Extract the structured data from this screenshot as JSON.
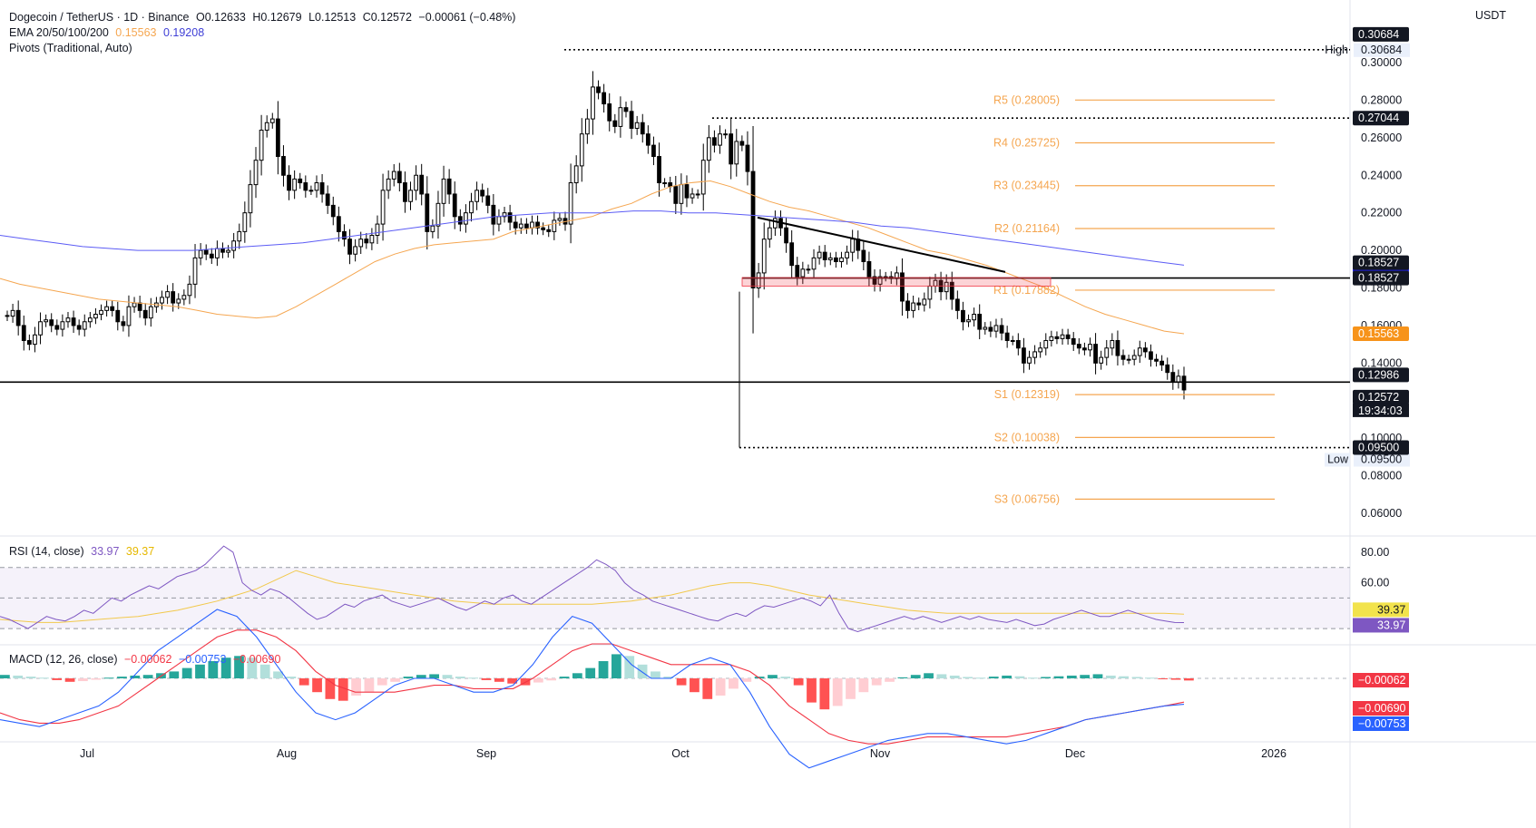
{
  "header": {
    "symbol": "Dogecoin / TetherUS · 1D · Binance",
    "open": "O0.12633",
    "high": "H0.12679",
    "low": "L0.12513",
    "close": "C0.12572",
    "change": "−0.00061 (−0.48%)",
    "ema_label": "EMA 20/50/100/200",
    "ema_50_value": "0.15563",
    "ema_200_value": "0.19208",
    "pivots_label": "Pivots (Traditional, Auto)",
    "currency": "USDT"
  },
  "colors": {
    "up": "#ffffff",
    "down": "#000000",
    "ema50": "#f5a650",
    "ema200": "#5c5cf5",
    "pivot": "#f5a650",
    "rsi": "#7e57c2",
    "rsi_ma": "#f2c94c",
    "macd": "#2962ff",
    "signal": "#f23645",
    "hist_up_strong": "#26a69a",
    "hist_up_weak": "#b2dfdb",
    "hist_down_strong": "#ff5252",
    "hist_down_weak": "#ffcdd2"
  },
  "chart_data": [
    {
      "type": "candlestick",
      "title": "Dogecoin / TetherUS · 1D · Binance",
      "ylabel": "USDT",
      "ylim": [
        0.05,
        0.31
      ],
      "y_ticks": [
        "0.30000",
        "0.28000",
        "0.26000",
        "0.24000",
        "0.22000",
        "0.20000",
        "0.18000",
        "0.16000",
        "0.14000",
        "0.12000",
        "0.10000",
        "0.08000",
        "0.06000"
      ],
      "x_ticks": [
        "Jul",
        "Aug",
        "Sep",
        "Oct",
        "Nov",
        "Dec",
        "2026"
      ],
      "closes": [
        0.165,
        0.168,
        0.16,
        0.152,
        0.15,
        0.155,
        0.162,
        0.163,
        0.16,
        0.158,
        0.162,
        0.164,
        0.16,
        0.158,
        0.162,
        0.164,
        0.166,
        0.168,
        0.17,
        0.168,
        0.162,
        0.16,
        0.17,
        0.172,
        0.168,
        0.164,
        0.17,
        0.172,
        0.175,
        0.178,
        0.172,
        0.174,
        0.176,
        0.182,
        0.196,
        0.2,
        0.198,
        0.196,
        0.201,
        0.199,
        0.2,
        0.205,
        0.21,
        0.22,
        0.235,
        0.248,
        0.264,
        0.268,
        0.27,
        0.25,
        0.24,
        0.232,
        0.238,
        0.236,
        0.232,
        0.232,
        0.236,
        0.23,
        0.224,
        0.218,
        0.21,
        0.206,
        0.198,
        0.202,
        0.206,
        0.204,
        0.208,
        0.214,
        0.232,
        0.238,
        0.242,
        0.236,
        0.226,
        0.232,
        0.24,
        0.23,
        0.21,
        0.213,
        0.225,
        0.238,
        0.23,
        0.218,
        0.214,
        0.22,
        0.226,
        0.232,
        0.229,
        0.224,
        0.214,
        0.218,
        0.22,
        0.215,
        0.212,
        0.214,
        0.212,
        0.215,
        0.212,
        0.211,
        0.21,
        0.216,
        0.217,
        0.214,
        0.236,
        0.245,
        0.262,
        0.27,
        0.287,
        0.284,
        0.278,
        0.269,
        0.266,
        0.276,
        0.274,
        0.265,
        0.268,
        0.262,
        0.256,
        0.25,
        0.236,
        0.236,
        0.234,
        0.225,
        0.235,
        0.228,
        0.23,
        0.23,
        0.248,
        0.26,
        0.256,
        0.262,
        0.262,
        0.246,
        0.258,
        0.256,
        0.242,
        0.18,
        0.188,
        0.206,
        0.212,
        0.217,
        0.212,
        0.204,
        0.192,
        0.186,
        0.19,
        0.19,
        0.196,
        0.199,
        0.195,
        0.196,
        0.194,
        0.196,
        0.199,
        0.206,
        0.2,
        0.194,
        0.186,
        0.182,
        0.186,
        0.186,
        0.185,
        0.188,
        0.173,
        0.168,
        0.172,
        0.171,
        0.174,
        0.181,
        0.184,
        0.178,
        0.183,
        0.174,
        0.168,
        0.162,
        0.163,
        0.166,
        0.158,
        0.159,
        0.157,
        0.16,
        0.156,
        0.152,
        0.152,
        0.148,
        0.14,
        0.143,
        0.146,
        0.148,
        0.152,
        0.154,
        0.153,
        0.155,
        0.153,
        0.15,
        0.148,
        0.147,
        0.15,
        0.14,
        0.143,
        0.148,
        0.152,
        0.144,
        0.142,
        0.142,
        0.144,
        0.148,
        0.146,
        0.142,
        0.141,
        0.139,
        0.135,
        0.13,
        0.133,
        0.1257
      ],
      "ema_50": [
        0.185,
        0.182,
        0.18,
        0.178,
        0.176,
        0.174,
        0.173,
        0.172,
        0.171,
        0.17,
        0.168,
        0.166,
        0.165,
        0.164,
        0.165,
        0.17,
        0.176,
        0.182,
        0.188,
        0.194,
        0.198,
        0.201,
        0.203,
        0.204,
        0.205,
        0.206,
        0.21,
        0.212,
        0.214,
        0.216,
        0.218,
        0.222,
        0.225,
        0.23,
        0.234,
        0.236,
        0.237,
        0.234,
        0.23,
        0.226,
        0.223,
        0.221,
        0.218,
        0.215,
        0.212,
        0.208,
        0.204,
        0.2,
        0.198,
        0.195,
        0.192,
        0.188,
        0.184,
        0.18,
        0.175,
        0.17,
        0.166,
        0.163,
        0.16,
        0.157,
        0.1556
      ],
      "ema_200": [
        0.208,
        0.206,
        0.204,
        0.202,
        0.201,
        0.2,
        0.2,
        0.2,
        0.201,
        0.202,
        0.203,
        0.204,
        0.206,
        0.208,
        0.21,
        0.212,
        0.214,
        0.216,
        0.218,
        0.219,
        0.22,
        0.22,
        0.22,
        0.221,
        0.221,
        0.22,
        0.22,
        0.219,
        0.218,
        0.217,
        0.216,
        0.215,
        0.213,
        0.212,
        0.21,
        0.208,
        0.206,
        0.204,
        0.202,
        0.2,
        0.198,
        0.196,
        0.194,
        0.1921
      ],
      "pivots": [
        {
          "label": "R5 (0.28005)",
          "value": 0.28005
        },
        {
          "label": "R4 (0.25725)",
          "value": 0.25725
        },
        {
          "label": "R3 (0.23445)",
          "value": 0.23445
        },
        {
          "label": "R2 (0.21164)",
          "value": 0.21164
        },
        {
          "label": "R1 (0.17882)",
          "value": 0.17882
        },
        {
          "label": "S1 (0.12319)",
          "value": 0.12319
        },
        {
          "label": "S2 (0.10038)",
          "value": 0.10038
        },
        {
          "label": "S3 (0.06756)",
          "value": 0.06756
        }
      ],
      "high": {
        "label": "High",
        "value": 0.30684,
        "text": "0.30684"
      },
      "low": {
        "label": "Low",
        "value": 0.095,
        "text": "0.09500"
      },
      "price_tags": [
        {
          "value": 0.30684,
          "text": "0.30684",
          "style": "dark"
        },
        {
          "value": 0.27044,
          "text": "0.27044",
          "style": "dark"
        },
        {
          "value": 0.19208,
          "text": "0.19208",
          "style": "blue"
        },
        {
          "value": 0.18527,
          "text": "0.18527",
          "style": "dark"
        },
        {
          "value": 0.18527,
          "text": "0.18527",
          "style": "dark"
        },
        {
          "value": 0.15563,
          "text": "0.15563",
          "style": "orange"
        },
        {
          "value": 0.12986,
          "text": "0.12986",
          "style": "dark"
        },
        {
          "value": 0.12572,
          "text": "0.12572",
          "style": "dark"
        },
        {
          "value": 0.095,
          "text": "0.09500",
          "style": "dark"
        }
      ],
      "countdown": "19:34:03",
      "support_line": 0.12986,
      "resistance_line": 0.18527,
      "resistance_zone": [
        0.181,
        0.1855
      ],
      "trendline": {
        "from": 0.2175,
        "to": 0.1885
      },
      "dotted_levels": [
        0.30684,
        0.27044,
        0.095
      ]
    },
    {
      "type": "line",
      "title": "RSI (14, close)",
      "value_rsi": "33.97",
      "value_ma": "39.37",
      "ylim": [
        20,
        90
      ],
      "y_ticks": [
        "80.00",
        "60.00"
      ],
      "bands": [
        70,
        50,
        30
      ],
      "rsi": [
        38,
        36,
        33,
        30,
        34,
        38,
        36,
        35,
        38,
        42,
        40,
        45,
        50,
        48,
        52,
        55,
        58,
        56,
        60,
        64,
        66,
        68,
        72,
        78,
        84,
        80,
        60,
        55,
        52,
        56,
        54,
        50,
        45,
        40,
        36,
        38,
        42,
        46,
        44,
        48,
        50,
        52,
        48,
        46,
        44,
        46,
        48,
        50,
        47,
        44,
        42,
        45,
        48,
        46,
        50,
        52,
        48,
        46,
        50,
        54,
        58,
        62,
        66,
        70,
        75,
        72,
        68,
        60,
        55,
        52,
        48,
        46,
        44,
        42,
        40,
        38,
        36,
        35,
        38,
        40,
        38,
        42,
        45,
        44,
        46,
        48,
        50,
        48,
        45,
        52,
        40,
        30,
        28,
        30,
        32,
        34,
        36,
        38,
        36,
        38,
        36,
        34,
        36,
        38,
        36,
        38,
        36,
        35,
        34,
        36,
        34,
        32,
        33,
        36,
        38,
        40,
        42,
        40,
        38,
        38,
        40,
        42,
        40,
        38,
        36,
        35,
        34,
        33.97
      ],
      "rsi_ma": [
        36,
        35,
        34,
        34,
        35,
        36,
        37,
        38,
        40,
        42,
        45,
        48,
        52,
        56,
        62,
        68,
        64,
        60,
        58,
        56,
        54,
        52,
        50,
        48,
        47,
        46,
        46,
        46,
        46,
        46,
        46,
        47,
        48,
        50,
        52,
        55,
        58,
        60,
        60,
        58,
        55,
        52,
        50,
        48,
        46,
        44,
        42,
        41,
        40,
        40,
        40,
        40,
        40,
        40,
        40,
        40,
        40,
        40,
        40,
        40,
        39.37
      ]
    },
    {
      "type": "bar",
      "title": "MACD (12, 26, close)",
      "value_hist": "−0.00062",
      "value_macd": "−0.00753",
      "value_signal": "−0.00690",
      "tags": [
        {
          "value": -0.00062,
          "text": "−0.00062",
          "style": "red"
        },
        {
          "value": -0.0069,
          "text": "−0.00690",
          "style": "red"
        },
        {
          "value": -0.00753,
          "text": "−0.00753",
          "style": "blue"
        }
      ],
      "histogram": [
        0.001,
        0.0008,
        0.0005,
        0.0002,
        -0.0005,
        -0.001,
        -0.0008,
        -0.0004,
        0.0002,
        0.0005,
        0.0008,
        0.001,
        0.0015,
        0.002,
        0.003,
        0.004,
        0.005,
        0.006,
        0.0065,
        0.006,
        0.004,
        0.002,
        0.0005,
        -0.002,
        -0.004,
        -0.006,
        -0.0065,
        -0.005,
        -0.004,
        -0.002,
        -0.001,
        0.0005,
        0.001,
        0.0012,
        0.001,
        0.0005,
        0.0002,
        -0.0005,
        -0.001,
        -0.0015,
        -0.002,
        -0.0012,
        -0.0006,
        0.0005,
        0.0015,
        0.003,
        0.005,
        0.007,
        0.0065,
        0.004,
        0.002,
        0.0005,
        -0.002,
        -0.004,
        -0.006,
        -0.005,
        -0.003,
        -0.001,
        0.0005,
        0.001,
        0.0005,
        -0.002,
        -0.007,
        -0.009,
        -0.008,
        -0.006,
        -0.004,
        -0.002,
        -0.001,
        0.0003,
        0.001,
        0.0015,
        0.0012,
        0.0008,
        0.0004,
        0.0002,
        0.0005,
        0.0008,
        0.0006,
        0.0002,
        0.0004,
        0.0006,
        0.0008,
        0.001,
        0.0012,
        0.0008,
        0.0006,
        0.0004,
        0.0002,
        -0.0002,
        -0.0004,
        -0.00062
      ],
      "macd": [
        -0.012,
        -0.013,
        -0.014,
        -0.012,
        -0.01,
        -0.008,
        -0.004,
        0.002,
        0.008,
        0.012,
        0.016,
        0.02,
        0.018,
        0.012,
        0.004,
        -0.004,
        -0.01,
        -0.012,
        -0.01,
        -0.006,
        -0.002,
        0.0,
        0.0,
        -0.002,
        -0.004,
        -0.004,
        -0.002,
        0.004,
        0.012,
        0.018,
        0.016,
        0.01,
        0.004,
        0.0,
        0.0,
        0.004,
        0.006,
        0.004,
        -0.004,
        -0.014,
        -0.022,
        -0.026,
        -0.024,
        -0.022,
        -0.02,
        -0.018,
        -0.017,
        -0.016,
        -0.016,
        -0.017,
        -0.018,
        -0.019,
        -0.018,
        -0.016,
        -0.014,
        -0.012,
        -0.011,
        -0.01,
        -0.009,
        -0.008,
        -0.00753
      ],
      "signal": [
        -0.01,
        -0.012,
        -0.013,
        -0.013,
        -0.012,
        -0.01,
        -0.008,
        -0.004,
        0.0,
        0.004,
        0.008,
        0.012,
        0.014,
        0.014,
        0.012,
        0.008,
        0.002,
        -0.002,
        -0.004,
        -0.004,
        -0.004,
        -0.003,
        -0.002,
        -0.002,
        -0.003,
        -0.003,
        -0.003,
        0.0,
        0.004,
        0.008,
        0.01,
        0.01,
        0.008,
        0.006,
        0.004,
        0.004,
        0.004,
        0.004,
        0.002,
        -0.002,
        -0.008,
        -0.012,
        -0.016,
        -0.018,
        -0.019,
        -0.019,
        -0.018,
        -0.017,
        -0.017,
        -0.017,
        -0.017,
        -0.017,
        -0.016,
        -0.015,
        -0.014,
        -0.012,
        -0.011,
        -0.01,
        -0.009,
        -0.008,
        -0.0069
      ]
    }
  ]
}
